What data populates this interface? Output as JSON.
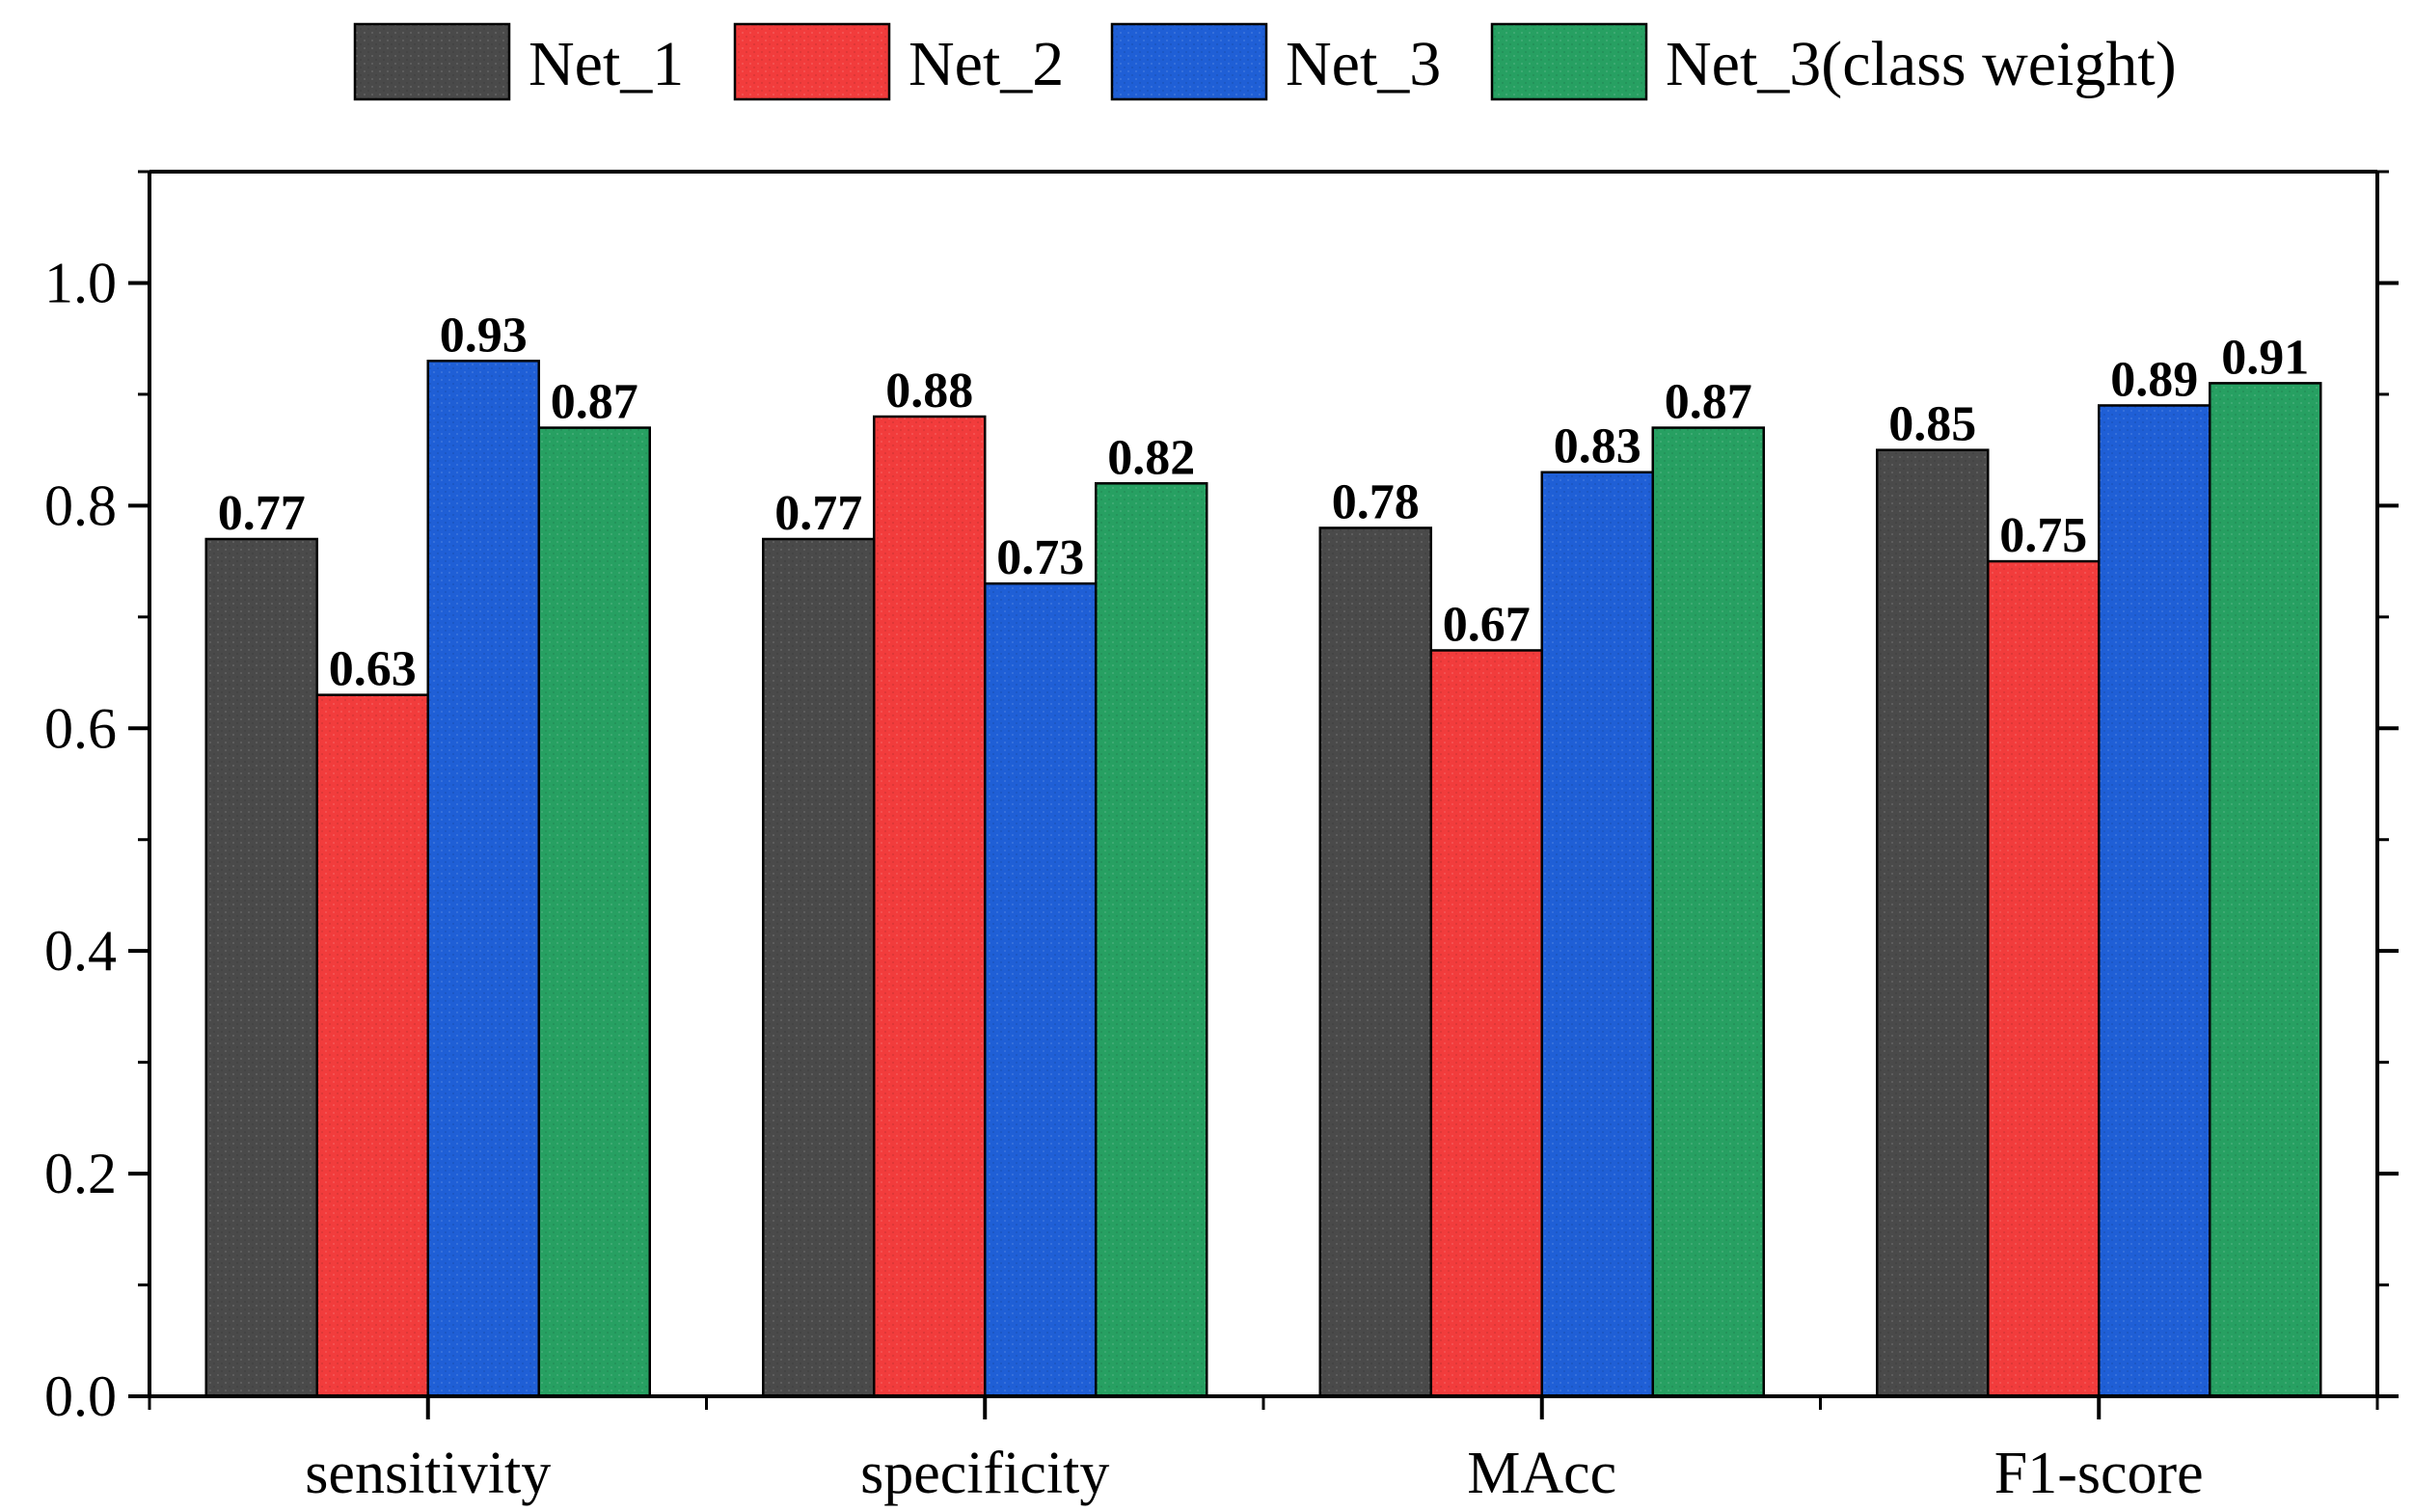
{
  "chart_data": {
    "type": "bar",
    "categories": [
      "sensitivity",
      "specificity",
      "MAcc",
      "F1-score"
    ],
    "series": [
      {
        "name": "Net_1",
        "color": "#4a4a4a",
        "values": [
          0.77,
          0.77,
          0.78,
          0.85
        ],
        "labels": [
          "0.77",
          "0.77",
          "0.78",
          "0.85"
        ]
      },
      {
        "name": "Net_2",
        "color": "#f23c3c",
        "values": [
          0.63,
          0.88,
          0.67,
          0.75
        ],
        "labels": [
          "0.63",
          "0.88",
          "0.67",
          "0.75"
        ]
      },
      {
        "name": "Net_3",
        "color": "#1f5fd6",
        "values": [
          0.93,
          0.73,
          0.83,
          0.89
        ],
        "labels": [
          "0.93",
          "0.73",
          "0.83",
          "0.89"
        ]
      },
      {
        "name": "Net_3(class weight)",
        "color": "#27a062",
        "values": [
          0.87,
          0.82,
          0.87,
          0.91
        ],
        "labels": [
          "0.87",
          "0.82",
          "0.87",
          "0.91"
        ]
      }
    ],
    "ylim": [
      0,
      1.1
    ],
    "yticks": [
      "0.0",
      "0.2",
      "0.4",
      "0.6",
      "0.8",
      "1.0"
    ],
    "title": "",
    "xlabel": "",
    "ylabel": "",
    "legend_position": "top",
    "grid": false
  }
}
